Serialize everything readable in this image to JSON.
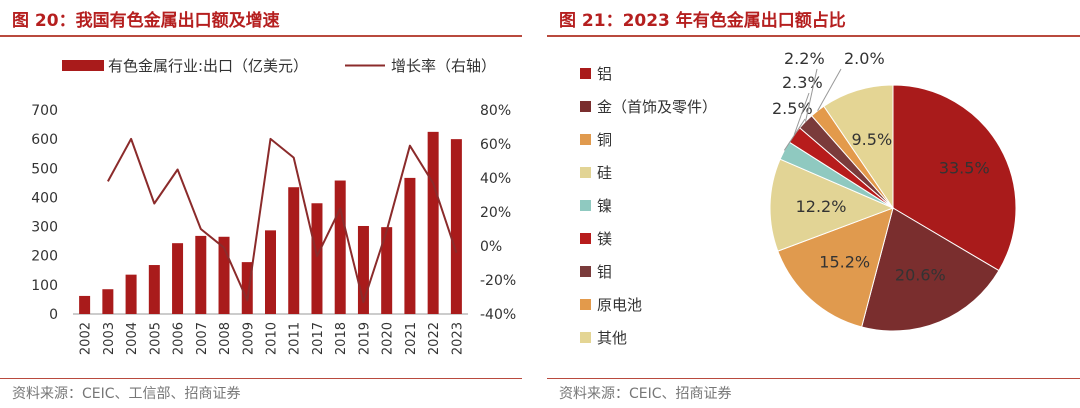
{
  "left": {
    "title": "图 20：我国有色金属出口额及增速",
    "source": "资料来源：CEIC、工信部、招商证券",
    "chart_data": {
      "type": "bar",
      "title": "",
      "categories": [
        "2002",
        "2003",
        "2004",
        "2005",
        "2006",
        "2007",
        "2008",
        "2009",
        "2010",
        "2011",
        "2017",
        "2018",
        "2019",
        "2020",
        "2021",
        "2022",
        "2023"
      ],
      "series": [
        {
          "name": "有色金属行业:出口（亿美元）",
          "type": "bar",
          "axis": "left",
          "values": [
            62,
            85,
            135,
            168,
            243,
            268,
            265,
            178,
            287,
            435,
            380,
            458,
            302,
            298,
            467,
            625,
            600
          ]
        },
        {
          "name": "增长率（右轴）",
          "type": "line",
          "axis": "right",
          "values": [
            null,
            38,
            63,
            25,
            45,
            10,
            -1,
            -32,
            63,
            52,
            -6,
            22,
            -33,
            9,
            59,
            37,
            -4
          ]
        }
      ],
      "left_ticks": [
        "0",
        "100",
        "200",
        "300",
        "400",
        "500",
        "600",
        "700"
      ],
      "right_ticks": [
        "-40%",
        "-20%",
        "0%",
        "20%",
        "40%",
        "60%",
        "80%"
      ],
      "ylim_left": [
        0,
        700
      ],
      "ylim_right": [
        -40,
        80
      ],
      "colors": {
        "bar": "#a91b1b",
        "line": "#8b2b2b"
      },
      "legend_position": "top"
    }
  },
  "right": {
    "title": "图 21：2023 年有色金属出口额占比",
    "source": "资料来源：CEIC、招商证券",
    "chart_data": {
      "type": "pie",
      "slices": [
        {
          "label": "铝",
          "value": 33.5,
          "display": "33.5%",
          "color": "#a91b1b"
        },
        {
          "label": "金（首饰及零件）",
          "value": 20.6,
          "display": "20.6%",
          "color": "#7a2e2e"
        },
        {
          "label": "铜",
          "value": 15.2,
          "display": "15.2%",
          "color": "#e09a4e"
        },
        {
          "label": "硅",
          "value": 12.2,
          "display": "12.2%",
          "color": "#e2d495"
        },
        {
          "label": "镍",
          "value": 2.5,
          "display": "2.5%",
          "color": "#8fc9c0"
        },
        {
          "label": "镁",
          "value": 2.3,
          "display": "2.3%",
          "color": "#b71c1c"
        },
        {
          "label": "钼",
          "value": 2.2,
          "display": "2.2%",
          "color": "#7a3b3b"
        },
        {
          "label": "原电池",
          "value": 2.0,
          "display": "2.0%",
          "color": "#e39a4b"
        },
        {
          "label": "其他",
          "value": 9.5,
          "display": "9.5%",
          "color": "#e4d594"
        }
      ],
      "legend_position": "left"
    }
  }
}
